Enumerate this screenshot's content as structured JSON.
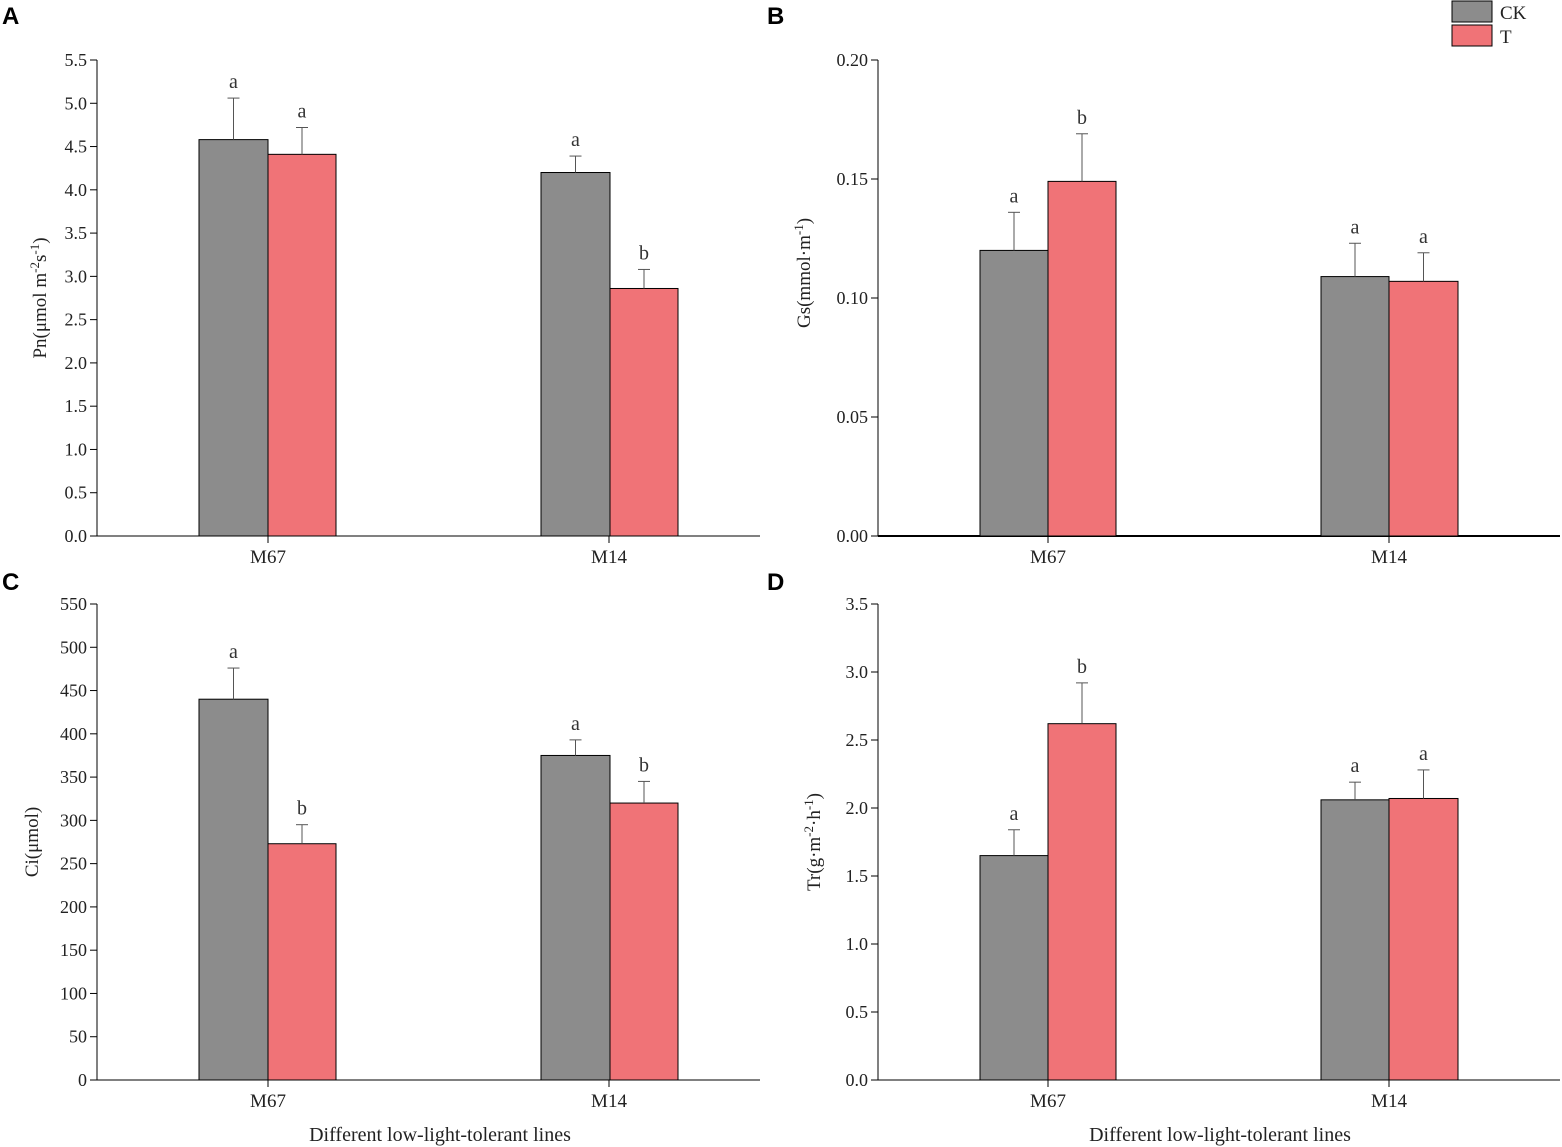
{
  "colors": {
    "CK": "#8c8c8c",
    "T": "#f07377",
    "axis": "#000000",
    "error": "#555555"
  },
  "legend": [
    {
      "key": "CK",
      "label": "CK"
    },
    {
      "key": "T",
      "label": "T"
    }
  ],
  "xtitle": "Different low-light-tolerant lines",
  "chart_data": [
    {
      "panel": "A",
      "type": "bar",
      "categories": [
        "M67",
        "M14"
      ],
      "ylabel": {
        "main": "Pn(μmol m",
        "sup1": "-2",
        "mid": "s",
        "sup2": "-1",
        "end": ")"
      },
      "ylim": [
        0,
        5.5
      ],
      "ticks": [
        "0.0",
        "0.5",
        "1.0",
        "1.5",
        "2.0",
        "2.5",
        "3.0",
        "3.5",
        "4.0",
        "4.5",
        "5.0",
        "5.5"
      ],
      "series": [
        {
          "name": "CK",
          "values": [
            4.58,
            4.2
          ],
          "errors": [
            0.48,
            0.19
          ],
          "letters": [
            "a",
            "a"
          ]
        },
        {
          "name": "T",
          "values": [
            4.41,
            2.86
          ],
          "errors": [
            0.31,
            0.22
          ],
          "letters": [
            "a",
            "b"
          ]
        }
      ]
    },
    {
      "panel": "B",
      "type": "bar",
      "categories": [
        "M67",
        "M14"
      ],
      "ylabel": {
        "main": "Gs(mmol·m",
        "sup1": "-1",
        "mid": "",
        "sup2": "",
        "end": ")"
      },
      "ylim": [
        0,
        0.2
      ],
      "ticks": [
        "0.00",
        "0.05",
        "0.10",
        "0.15",
        "0.20"
      ],
      "series": [
        {
          "name": "CK",
          "values": [
            0.12,
            0.109
          ],
          "errors": [
            0.016,
            0.014
          ],
          "letters": [
            "a",
            "a"
          ]
        },
        {
          "name": "T",
          "values": [
            0.149,
            0.107
          ],
          "errors": [
            0.02,
            0.012
          ],
          "letters": [
            "b",
            "a"
          ]
        }
      ]
    },
    {
      "panel": "C",
      "type": "bar",
      "categories": [
        "M67",
        "M14"
      ],
      "ylabel": {
        "main": "Ci(μmol)",
        "sup1": "",
        "mid": "",
        "sup2": "",
        "end": ""
      },
      "ylim": [
        0,
        550
      ],
      "ticks": [
        "0",
        "50",
        "100",
        "150",
        "200",
        "250",
        "300",
        "350",
        "400",
        "450",
        "500",
        "550"
      ],
      "series": [
        {
          "name": "CK",
          "values": [
            440,
            375
          ],
          "errors": [
            36,
            18
          ],
          "letters": [
            "a",
            "a"
          ]
        },
        {
          "name": "T",
          "values": [
            273,
            320
          ],
          "errors": [
            22,
            25
          ],
          "letters": [
            "b",
            "b"
          ]
        }
      ]
    },
    {
      "panel": "D",
      "type": "bar",
      "categories": [
        "M67",
        "M14"
      ],
      "ylabel": {
        "main": "Tr(g·m",
        "sup1": "-2",
        "mid": "·h",
        "sup2": "-1",
        "end": ")"
      },
      "ylim": [
        0,
        3.5
      ],
      "ticks": [
        "0.0",
        "0.5",
        "1.0",
        "1.5",
        "2.0",
        "2.5",
        "3.0",
        "3.5"
      ],
      "series": [
        {
          "name": "CK",
          "values": [
            1.65,
            2.06
          ],
          "errors": [
            0.19,
            0.13
          ],
          "letters": [
            "a",
            "a"
          ]
        },
        {
          "name": "T",
          "values": [
            2.62,
            2.07
          ],
          "errors": [
            0.3,
            0.21
          ],
          "letters": [
            "b",
            "a"
          ]
        }
      ]
    }
  ]
}
